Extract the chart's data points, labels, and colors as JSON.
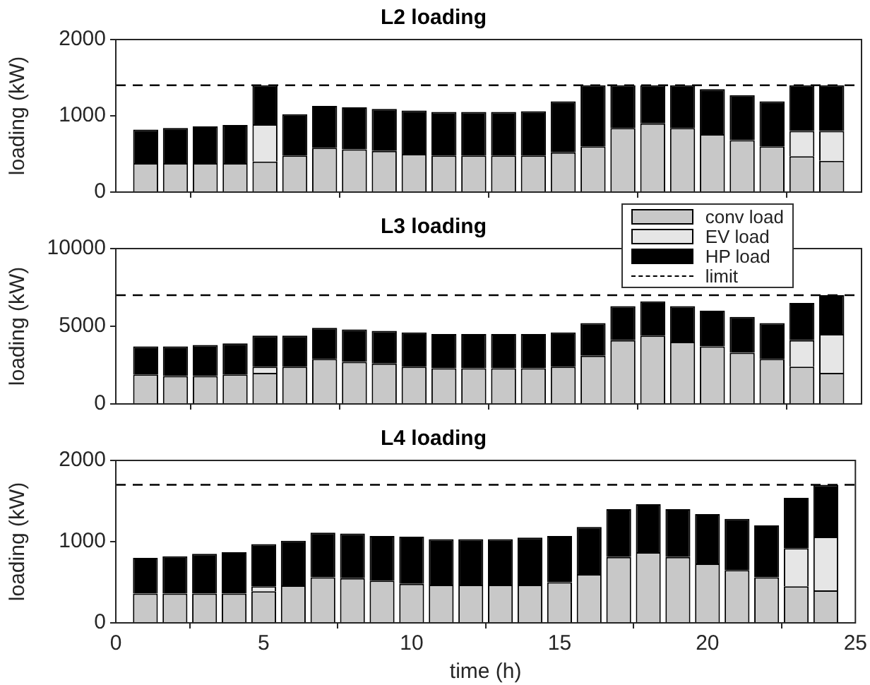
{
  "chart_data": [
    {
      "type": "bar",
      "title": "L2 loading",
      "ylabel": "loading (kW)",
      "stacked": true,
      "x": [
        1,
        2,
        3,
        4,
        5,
        6,
        7,
        8,
        9,
        10,
        11,
        12,
        13,
        14,
        15,
        16,
        17,
        18,
        19,
        20,
        21,
        22,
        23,
        24
      ],
      "xlim": [
        0,
        25
      ],
      "xticks": [
        {
          "value": 0,
          "label": null
        },
        {
          "value": 5,
          "label": null
        },
        {
          "value": 10,
          "label": null
        },
        {
          "value": 15,
          "label": null
        },
        {
          "value": 20,
          "label": null
        },
        {
          "value": 25,
          "label": null
        }
      ],
      "ylim": [
        0,
        2000
      ],
      "yticks": [
        0,
        1000,
        2000
      ],
      "tick_labels": "y",
      "grid": false,
      "series": [
        {
          "color": "#c8c8c8",
          "values": [
            380,
            380,
            380,
            380,
            400,
            480,
            580,
            560,
            540,
            500,
            480,
            480,
            480,
            480,
            520,
            600,
            840,
            900,
            840,
            760,
            680,
            600,
            470,
            410
          ]
        },
        {
          "color": "#e6e6e6",
          "values": [
            0,
            0,
            0,
            0,
            490,
            0,
            0,
            0,
            0,
            0,
            0,
            0,
            0,
            0,
            0,
            0,
            0,
            0,
            0,
            0,
            0,
            0,
            330,
            390
          ]
        },
        {
          "color": "#000000",
          "values": [
            440,
            460,
            480,
            500,
            510,
            540,
            550,
            550,
            550,
            570,
            570,
            570,
            570,
            580,
            670,
            800,
            560,
            500,
            560,
            590,
            590,
            590,
            600,
            600
          ]
        }
      ],
      "ref_lines": [
        {
          "axis": "y",
          "value": 1400,
          "color": "#000000",
          "line_style": "dashed"
        }
      ]
    },
    {
      "type": "bar",
      "title": "L3 loading",
      "ylabel": "loading (kW)",
      "stacked": true,
      "x": [
        1,
        2,
        3,
        4,
        5,
        6,
        7,
        8,
        9,
        10,
        11,
        12,
        13,
        14,
        15,
        16,
        17,
        18,
        19,
        20,
        21,
        22,
        23,
        24
      ],
      "xlim": [
        0,
        25
      ],
      "xticks": [
        {
          "value": 0,
          "label": null
        },
        {
          "value": 5,
          "label": null
        },
        {
          "value": 10,
          "label": null
        },
        {
          "value": 15,
          "label": null
        },
        {
          "value": 20,
          "label": null
        },
        {
          "value": 25,
          "label": null
        }
      ],
      "ylim": [
        0,
        10000
      ],
      "yticks": [
        0,
        5000,
        10000
      ],
      "tick_labels": "y",
      "grid": false,
      "legend": "top right",
      "series": [
        {
          "name": "conv load",
          "color": "#c8c8c8",
          "values": [
            1900,
            1800,
            1800,
            1900,
            2000,
            2400,
            2900,
            2700,
            2600,
            2400,
            2300,
            2300,
            2300,
            2300,
            2400,
            3100,
            4100,
            4400,
            4000,
            3700,
            3300,
            2900,
            2400,
            2000
          ]
        },
        {
          "name": "EV load",
          "color": "#e6e6e6",
          "values": [
            0,
            0,
            0,
            0,
            400,
            0,
            0,
            0,
            0,
            0,
            0,
            0,
            0,
            0,
            0,
            0,
            0,
            0,
            0,
            0,
            0,
            0,
            1700,
            2500
          ]
        },
        {
          "name": "HP load",
          "color": "#000000",
          "values": [
            1800,
            1900,
            2000,
            2000,
            2000,
            2000,
            2000,
            2100,
            2100,
            2200,
            2200,
            2200,
            2200,
            2200,
            2200,
            2100,
            2200,
            2200,
            2300,
            2300,
            2300,
            2300,
            2400,
            2500
          ]
        }
      ],
      "ref_lines": [
        {
          "axis": "y",
          "value": 7000,
          "label": "limit",
          "color": "#000000",
          "line_style": "dashed"
        }
      ]
    },
    {
      "type": "bar",
      "title": "L4 loading",
      "xlabel": "time (h)",
      "ylabel": "loading (kW)",
      "stacked": true,
      "x": [
        1,
        2,
        3,
        4,
        5,
        6,
        7,
        8,
        9,
        10,
        11,
        12,
        13,
        14,
        15,
        16,
        17,
        18,
        19,
        20,
        21,
        22,
        23,
        24
      ],
      "xlim": [
        0,
        25
      ],
      "xticks": [
        0,
        5,
        10,
        15,
        20,
        25
      ],
      "ylim": [
        0,
        2000
      ],
      "yticks": [
        0,
        1000,
        2000
      ],
      "grid": false,
      "series": [
        {
          "color": "#c8c8c8",
          "values": [
            360,
            360,
            360,
            360,
            390,
            460,
            560,
            550,
            520,
            480,
            470,
            470,
            470,
            470,
            500,
            600,
            810,
            870,
            810,
            730,
            650,
            560,
            450,
            400
          ]
        },
        {
          "color": "#e6e6e6",
          "values": [
            0,
            0,
            0,
            0,
            60,
            0,
            0,
            0,
            0,
            0,
            0,
            0,
            0,
            0,
            0,
            0,
            0,
            0,
            0,
            0,
            0,
            0,
            470,
            660
          ]
        },
        {
          "color": "#000000",
          "values": [
            440,
            460,
            490,
            510,
            520,
            550,
            550,
            550,
            550,
            580,
            560,
            560,
            560,
            580,
            570,
            580,
            590,
            590,
            590,
            610,
            630,
            640,
            620,
            640
          ]
        }
      ],
      "ref_lines": [
        {
          "axis": "y",
          "value": 1700,
          "color": "#000000",
          "line_style": "dashed"
        }
      ]
    }
  ]
}
